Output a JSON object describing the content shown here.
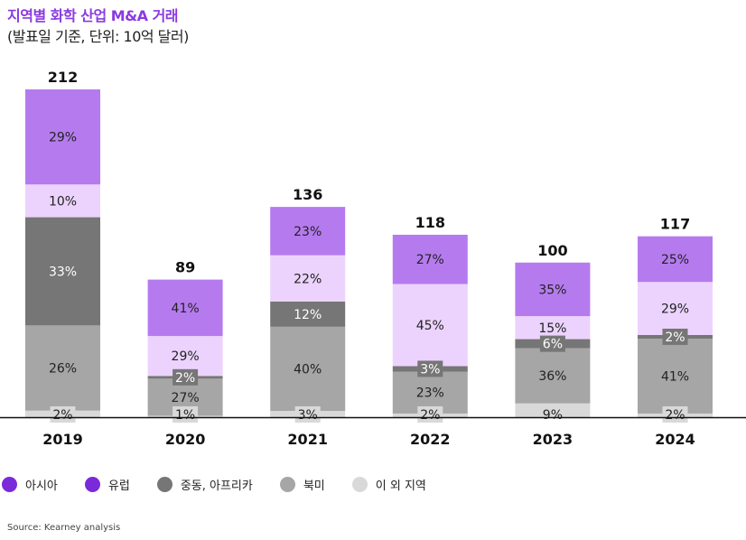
{
  "title": "지역별 화학 산업 M&A 거래",
  "subtitle": "(발표일 기준, 단위: 10억 달러)",
  "source": "Source: Kearney analysis",
  "chart_data": {
    "type": "bar",
    "stacked": true,
    "title": "지역별 화학 산업 M&A 거래",
    "subtitle": "(발표일 기준, 단위: 10억 달러)",
    "xlabel": "",
    "ylabel": "",
    "ylim": [
      0,
      212
    ],
    "grid": false,
    "legend_position": "bottom-left",
    "categories": [
      "2019",
      "2020",
      "2021",
      "2022",
      "2023",
      "2024"
    ],
    "totals": [
      212,
      89,
      136,
      118,
      100,
      117
    ],
    "series_order_bottom_to_top": [
      "other",
      "na",
      "mea",
      "europe",
      "asia"
    ],
    "series": [
      {
        "key": "asia",
        "name": "아시아",
        "color": "#b57bee",
        "legend_color": "#7b2ad9",
        "values_pct": [
          29,
          41,
          23,
          27,
          35,
          25
        ]
      },
      {
        "key": "europe",
        "name": "유럽",
        "color": "#ecd3fd",
        "legend_color": "#7b2ad9",
        "values_pct": [
          10,
          29,
          22,
          45,
          15,
          29
        ]
      },
      {
        "key": "mea",
        "name": "중동, 아프리카",
        "color": "#767676",
        "legend_color": "#767676",
        "values_pct": [
          33,
          2,
          12,
          3,
          6,
          2
        ]
      },
      {
        "key": "na",
        "name": "북미",
        "color": "#a6a6a6",
        "legend_color": "#a6a6a6",
        "values_pct": [
          26,
          27,
          40,
          23,
          36,
          41
        ]
      },
      {
        "key": "other",
        "name": "이 외 지역",
        "color": "#d9d9d9",
        "legend_color": "#d9d9d9",
        "values_pct": [
          2,
          1,
          3,
          2,
          9,
          2
        ]
      }
    ]
  }
}
